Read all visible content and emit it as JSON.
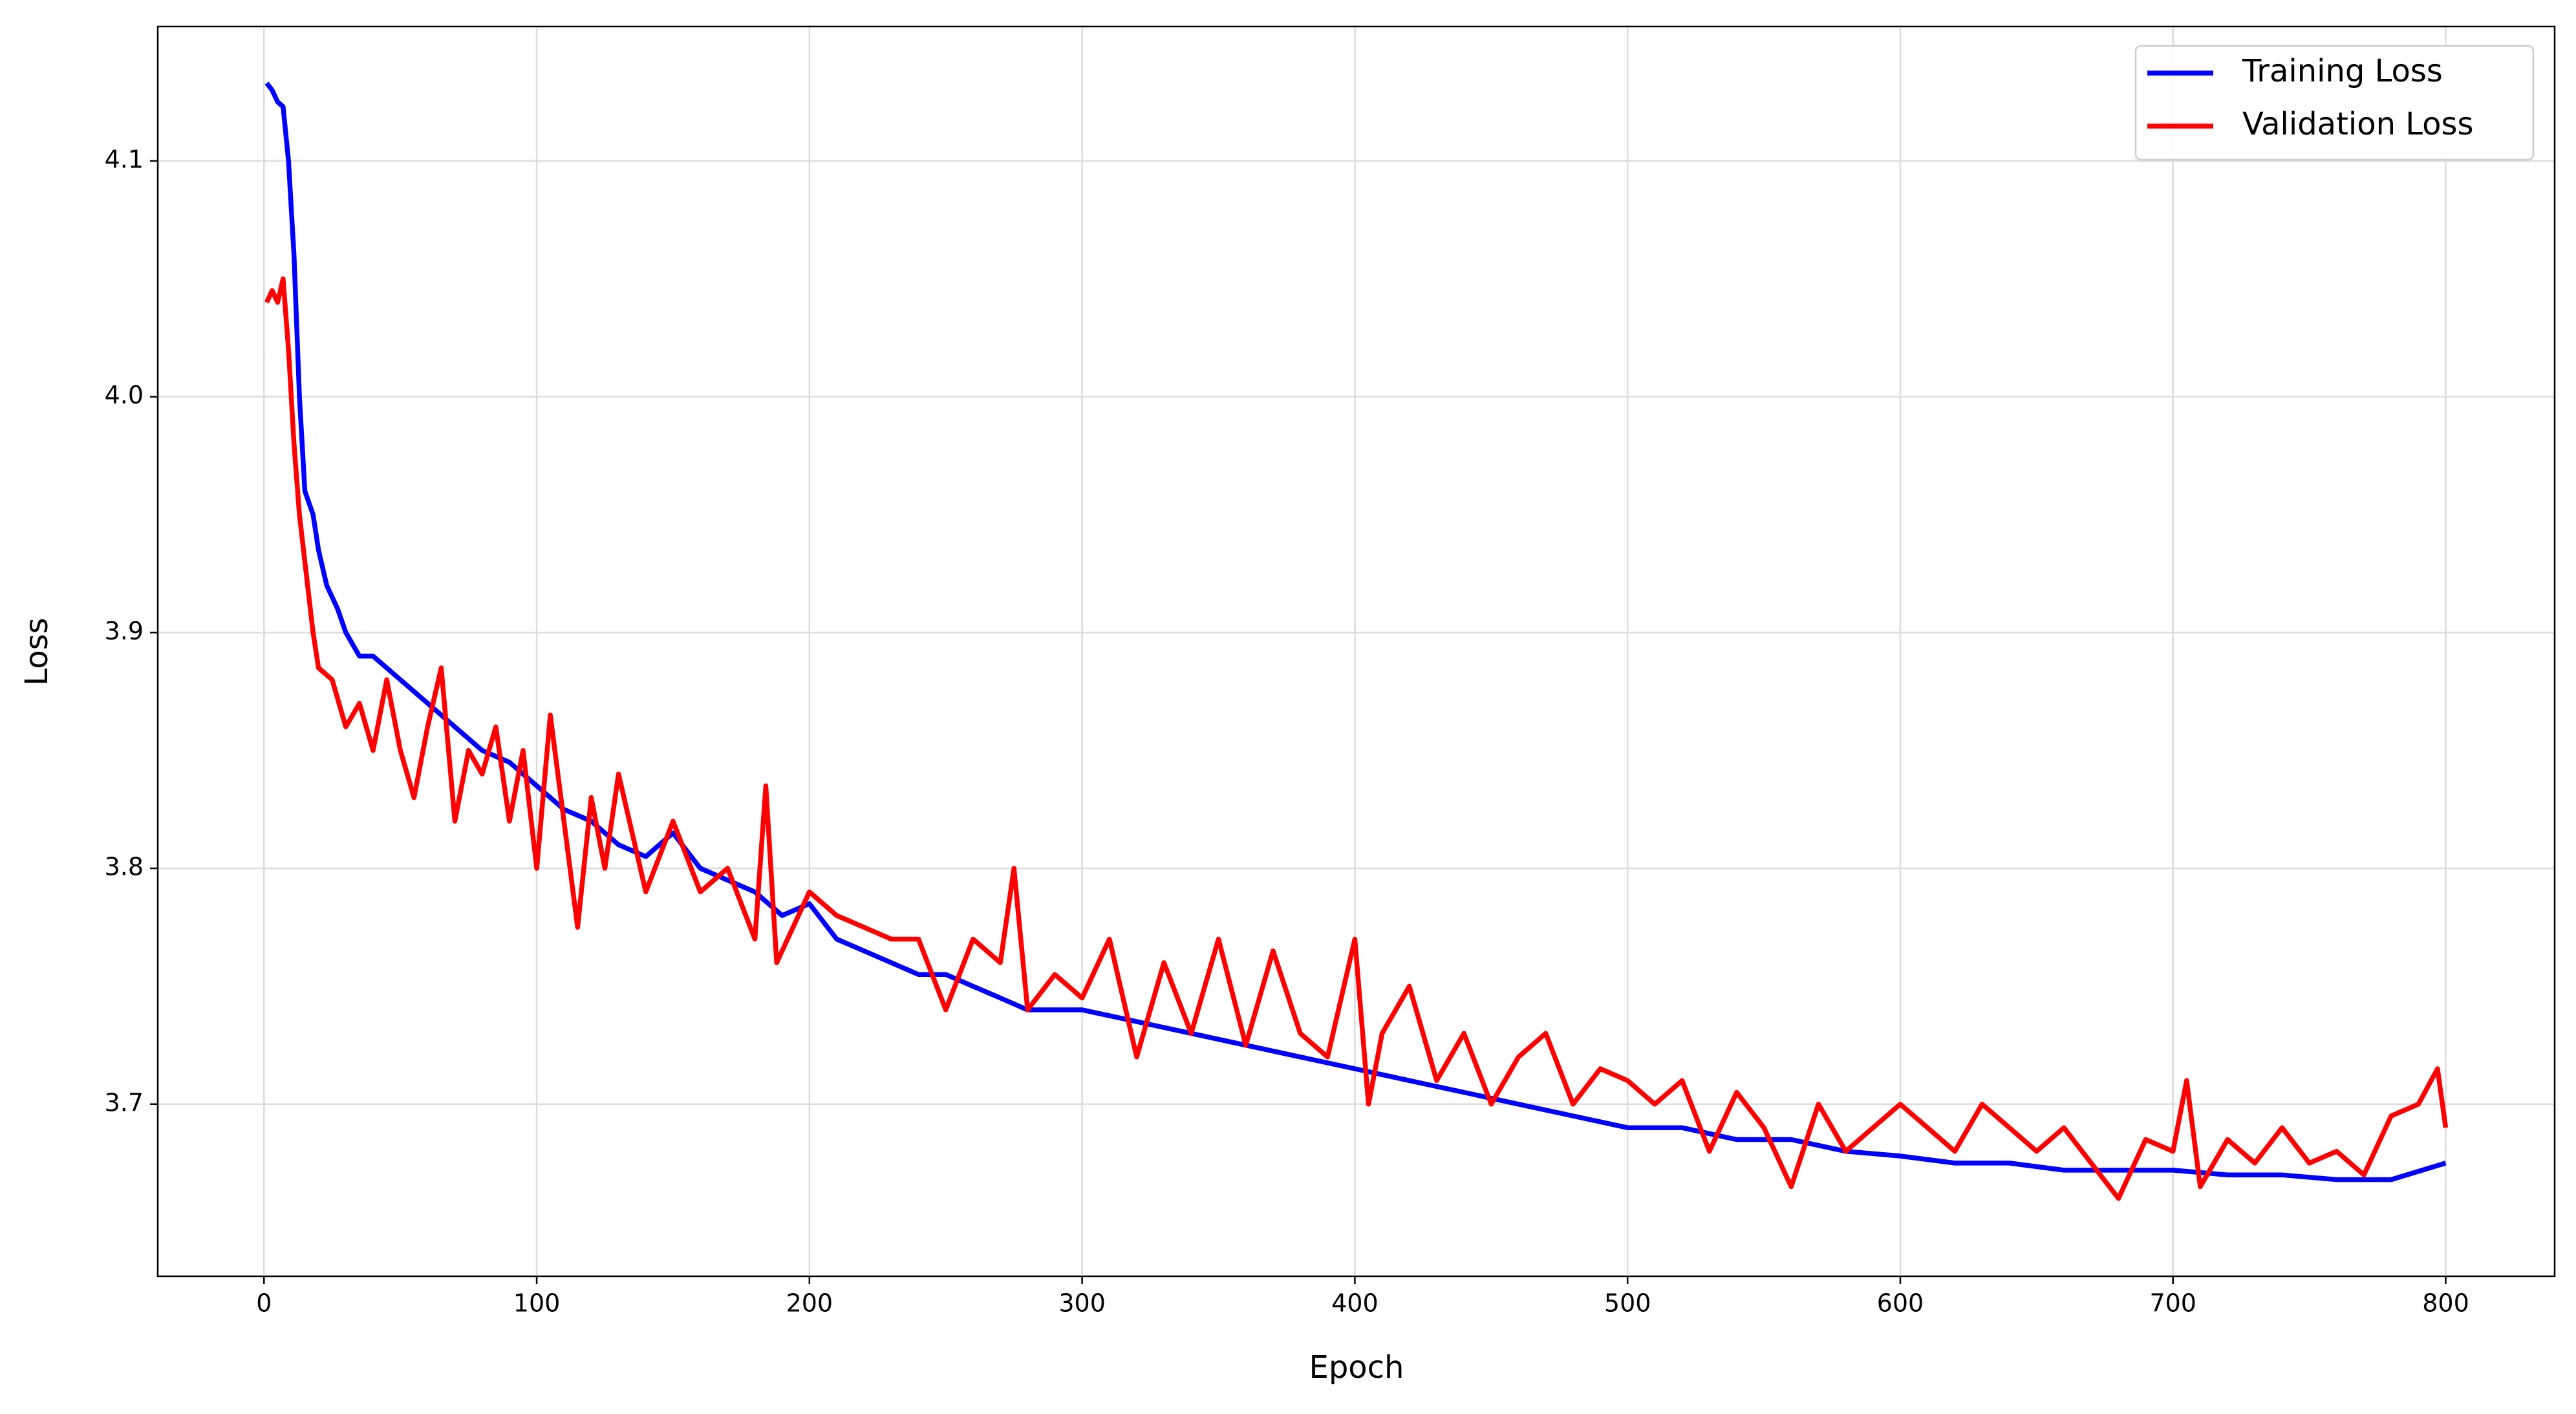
{
  "chart_data": {
    "type": "line",
    "xlabel": "Epoch",
    "ylabel": "Loss",
    "xlim": [
      -38.95,
      839.95
    ],
    "ylim": [
      3.627,
      4.157
    ],
    "xticks": [
      0,
      100,
      200,
      300,
      400,
      500,
      600,
      700,
      800
    ],
    "yticks": [
      3.7,
      3.8,
      3.9,
      {
        "value": 4,
        "label": "4.0"
      },
      4.1
    ],
    "grid": true,
    "legend": "upper right",
    "series": [
      {
        "name": "Training Loss",
        "color": "#0000ff",
        "x": [
          1,
          3,
          5,
          7,
          9,
          11,
          13,
          15,
          18,
          20,
          23,
          27,
          30,
          35,
          40,
          50,
          60,
          70,
          80,
          90,
          100,
          110,
          120,
          130,
          140,
          150,
          160,
          170,
          180,
          190,
          200,
          210,
          220,
          230,
          240,
          250,
          260,
          270,
          280,
          290,
          300,
          320,
          340,
          360,
          380,
          400,
          420,
          440,
          460,
          480,
          500,
          520,
          540,
          560,
          580,
          600,
          620,
          640,
          660,
          680,
          700,
          720,
          740,
          760,
          780,
          800
        ],
        "values": [
          4.133,
          4.13,
          4.125,
          4.123,
          4.1,
          4.06,
          4.0,
          3.96,
          3.95,
          3.935,
          3.92,
          3.91,
          3.9,
          3.89,
          3.89,
          3.88,
          3.87,
          3.86,
          3.85,
          3.845,
          3.835,
          3.825,
          3.82,
          3.81,
          3.805,
          3.815,
          3.8,
          3.795,
          3.79,
          3.78,
          3.785,
          3.77,
          3.765,
          3.76,
          3.755,
          3.755,
          3.75,
          3.745,
          3.74,
          3.74,
          3.74,
          3.735,
          3.73,
          3.725,
          3.72,
          3.715,
          3.71,
          3.705,
          3.7,
          3.695,
          3.69,
          3.69,
          3.685,
          3.685,
          3.68,
          3.678,
          3.675,
          3.675,
          3.672,
          3.672,
          3.672,
          3.67,
          3.67,
          3.668,
          3.668,
          3.675
        ]
      },
      {
        "name": "Validation Loss",
        "color": "#ff0000",
        "x": [
          1,
          3,
          5,
          7,
          9,
          11,
          13,
          15,
          18,
          20,
          25,
          30,
          35,
          40,
          45,
          50,
          55,
          60,
          65,
          70,
          75,
          80,
          85,
          90,
          95,
          100,
          105,
          110,
          115,
          120,
          125,
          130,
          140,
          150,
          160,
          170,
          180,
          184,
          188,
          200,
          210,
          220,
          230,
          240,
          250,
          260,
          270,
          275,
          280,
          290,
          300,
          310,
          320,
          330,
          340,
          350,
          360,
          370,
          380,
          390,
          400,
          405,
          410,
          420,
          430,
          440,
          450,
          460,
          470,
          480,
          490,
          500,
          510,
          520,
          530,
          540,
          550,
          560,
          570,
          580,
          590,
          600,
          610,
          620,
          630,
          640,
          650,
          660,
          670,
          680,
          690,
          700,
          705,
          710,
          720,
          730,
          740,
          750,
          760,
          770,
          780,
          790,
          797,
          800
        ],
        "values": [
          4.04,
          4.045,
          4.04,
          4.05,
          4.02,
          3.98,
          3.95,
          3.93,
          3.9,
          3.885,
          3.88,
          3.86,
          3.87,
          3.85,
          3.88,
          3.85,
          3.83,
          3.86,
          3.885,
          3.82,
          3.85,
          3.84,
          3.86,
          3.82,
          3.85,
          3.8,
          3.865,
          3.82,
          3.775,
          3.83,
          3.8,
          3.84,
          3.79,
          3.82,
          3.79,
          3.8,
          3.77,
          3.835,
          3.76,
          3.79,
          3.78,
          3.775,
          3.77,
          3.77,
          3.74,
          3.77,
          3.76,
          3.8,
          3.74,
          3.755,
          3.745,
          3.77,
          3.72,
          3.76,
          3.73,
          3.77,
          3.725,
          3.765,
          3.73,
          3.72,
          3.77,
          3.7,
          3.73,
          3.75,
          3.71,
          3.73,
          3.7,
          3.72,
          3.73,
          3.7,
          3.715,
          3.71,
          3.7,
          3.71,
          3.68,
          3.705,
          3.69,
          3.665,
          3.7,
          3.68,
          3.69,
          3.7,
          3.69,
          3.68,
          3.7,
          3.69,
          3.68,
          3.69,
          3.675,
          3.66,
          3.685,
          3.68,
          3.71,
          3.665,
          3.685,
          3.675,
          3.69,
          3.675,
          3.68,
          3.67,
          3.695,
          3.7,
          3.715,
          3.69
        ]
      }
    ]
  }
}
